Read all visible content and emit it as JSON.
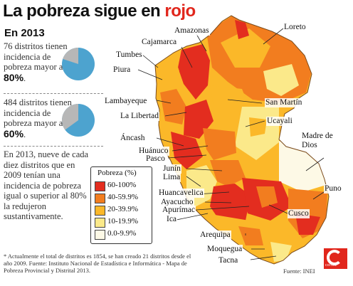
{
  "title": {
    "main": "La pobreza sigue en",
    "highlight": "rojo"
  },
  "subtitle": "En 2013",
  "stats": [
    {
      "pre": "76 distritos tienen incidencia de pobreza mayor al ",
      "bold": "80%",
      "post": ".",
      "share": 0.2
    },
    {
      "pre": "484 distritos tienen incidencia de pobreza mayor al ",
      "bold": "60%",
      "post": ".",
      "share": 0.35
    }
  ],
  "note": "En 2013, nueve de cada diez distritos que en 2009 tenían una incidencia de pobreza igual o superior al 80% la redujeron sustantivamente.",
  "footnote": "* Actualmente el total de distritos es 1854, se han creado 21 distritos desde el año 2009. Fuente: Instituto Nacional de Estadística e Informática - Mapa de Pobreza Provincial y Distrital 2013.",
  "source": "Fuente: INEI",
  "legend": {
    "title": "Pobreza (%)",
    "items": [
      {
        "label": "60-100%",
        "color": "#e32d1f"
      },
      {
        "label": "40-59.9%",
        "color": "#f27d1f"
      },
      {
        "label": "20-39.9%",
        "color": "#fbb829"
      },
      {
        "label": "10-19.9%",
        "color": "#fbe98a"
      },
      {
        "label": "0.0-9.9%",
        "color": "#fdf9e6"
      }
    ]
  },
  "regions": [
    "Amazonas",
    "Loreto",
    "Cajamarca",
    "Tumbes",
    "Piura",
    "Lambayeque",
    "San Martín",
    "La Libertad",
    "Ucayali",
    "Áncash",
    "Madre de Dios",
    "Huánuco",
    "Pasco",
    "Junín",
    "Lima",
    "Huancavelica",
    "Puno",
    "Ayacucho",
    "Apurímac",
    "Ica",
    "Cusco",
    "Arequipa",
    "Moquegua",
    "Tacna"
  ],
  "colors": {
    "accent_red": "#e1261c",
    "pie_blue": "#4da3cf",
    "pie_gray": "#b7b7b7"
  },
  "logo": {
    "word": "correo"
  }
}
